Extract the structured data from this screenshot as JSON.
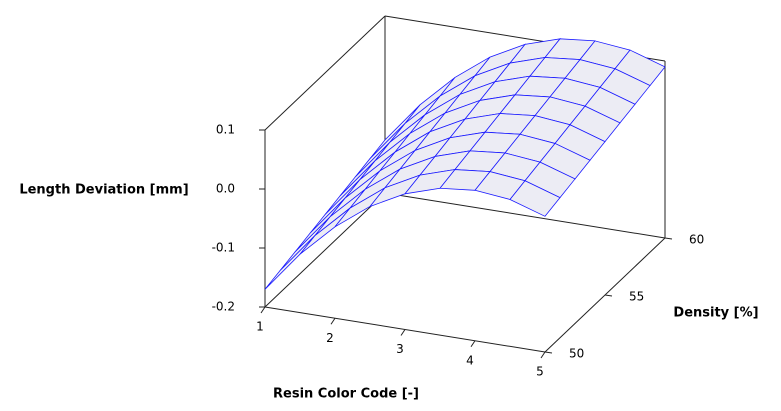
{
  "chart_data": {
    "type": "surface",
    "x_label": "Resin Color Code [-]",
    "y_label": "Density [%]",
    "z_label": "Length Deviation [mm]",
    "x": [
      1,
      1.5,
      2,
      2.5,
      3,
      3.5,
      4,
      4.5,
      5
    ],
    "y": [
      50,
      51.25,
      52.5,
      53.75,
      55,
      56.25,
      57.5,
      58.75,
      60
    ],
    "z": [
      [
        -0.17,
        -0.101,
        -0.045,
        -0.001,
        0.03,
        0.049,
        0.055,
        0.049,
        0.03
      ],
      [
        -0.1625,
        -0.0935,
        -0.0375,
        0.0065,
        0.0375,
        0.0565,
        0.0625,
        0.0565,
        0.0375
      ],
      [
        -0.155,
        -0.086,
        -0.03,
        0.014,
        0.045,
        0.064,
        0.07,
        0.064,
        0.045
      ],
      [
        -0.1475,
        -0.0785,
        -0.0225,
        0.0215,
        0.0525,
        0.0715,
        0.0775,
        0.0715,
        0.0525
      ],
      [
        -0.14,
        -0.071,
        -0.015,
        0.029,
        0.06,
        0.079,
        0.085,
        0.079,
        0.06
      ],
      [
        -0.1325,
        -0.0635,
        -0.0075,
        0.0365,
        0.0675,
        0.0865,
        0.0925,
        0.0865,
        0.0675
      ],
      [
        -0.125,
        -0.056,
        0,
        0.044,
        0.075,
        0.094,
        0.1,
        0.094,
        0.075
      ],
      [
        -0.1175,
        -0.0485,
        0.0075,
        0.0515,
        0.0825,
        0.1015,
        0.1075,
        0.1015,
        0.0825
      ],
      [
        -0.11,
        -0.041,
        0.015,
        0.059,
        0.09,
        0.109,
        0.115,
        0.109,
        0.09
      ]
    ],
    "xlim": [
      1,
      5
    ],
    "ylim": [
      50,
      60
    ],
    "zlim": [
      -0.2,
      0.1
    ],
    "xticks": [
      1,
      2,
      3,
      4,
      5
    ],
    "yticks": [
      50,
      55,
      60
    ],
    "zticks": [
      0.1,
      {
        "value": 0,
        "label": "0.0"
      },
      -0.1,
      -0.2
    ],
    "color": "#1a1aff",
    "fill": "#ececf4"
  }
}
